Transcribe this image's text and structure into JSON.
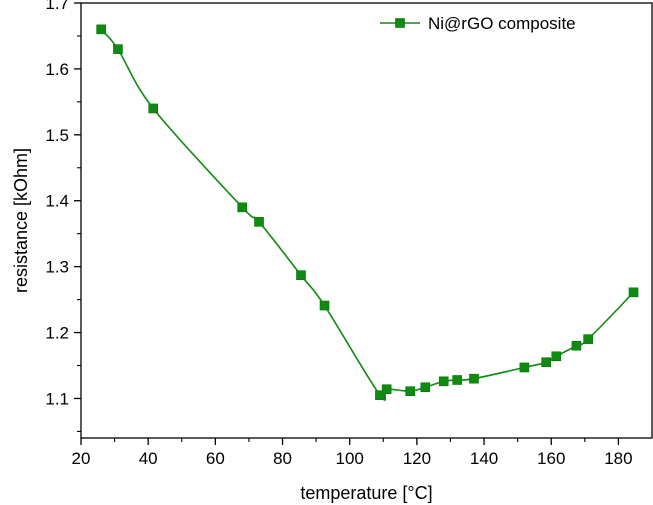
{
  "chart_data": {
    "type": "line",
    "xlabel": "temperature [°C]",
    "ylabel": "resistance [kOhm]",
    "xlim": [
      20,
      190
    ],
    "ylim": [
      1.04,
      1.7
    ],
    "x_ticks": [
      20,
      40,
      60,
      80,
      100,
      120,
      140,
      160,
      180
    ],
    "y_ticks": [
      1.1,
      1.2,
      1.3,
      1.4,
      1.5,
      1.6,
      1.7
    ],
    "x_tick_labels": [
      "20",
      "40",
      "60",
      "80",
      "100",
      "120",
      "140",
      "160",
      "180"
    ],
    "y_tick_labels": [
      "1.1",
      "1.2",
      "1.3",
      "1.4",
      "1.5",
      "1.6",
      "1.7"
    ],
    "legend_position": "top-right",
    "grid": false,
    "series": [
      {
        "name": "Ni@rGO composite",
        "color": "#0f8c0f",
        "marker": "square",
        "x": [
          26,
          31,
          41.5,
          68,
          73,
          85.5,
          92.5,
          109,
          111,
          118,
          122.5,
          128,
          132,
          137,
          152,
          158.5,
          161.5,
          167.5,
          171,
          184.5
        ],
        "y": [
          1.66,
          1.63,
          1.54,
          1.39,
          1.368,
          1.287,
          1.241,
          1.105,
          1.114,
          1.111,
          1.117,
          1.126,
          1.128,
          1.13,
          1.147,
          1.155,
          1.164,
          1.18,
          1.19,
          1.261
        ]
      }
    ]
  }
}
